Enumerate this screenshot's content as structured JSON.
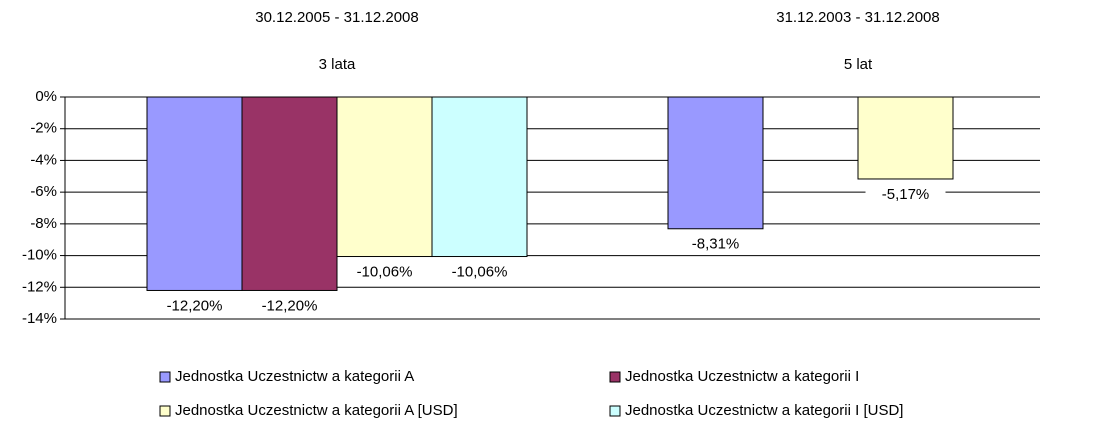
{
  "chart_data": {
    "type": "bar",
    "categories": [
      "30.12.2005 - 31.12.2008",
      "31.12.2003 - 31.12.2008"
    ],
    "category_sublabels": [
      "3 lata",
      "5 lat"
    ],
    "series": [
      {
        "name": "Jednostka Uczestnictw a kategorii A",
        "color": "#9999ff",
        "values": [
          -12.2,
          -8.31
        ],
        "value_labels": [
          "-12,20%",
          "-8,31%"
        ]
      },
      {
        "name": "Jednostka Uczestnictw a kategorii I",
        "color": "#993366",
        "values": [
          -12.2,
          null
        ],
        "value_labels": [
          "-12,20%",
          null
        ]
      },
      {
        "name": "Jednostka Uczestnictw a kategorii A [USD]",
        "color": "#ffffcc",
        "values": [
          -10.06,
          -5.17
        ],
        "value_labels": [
          "-10,06%",
          "-5,17%"
        ]
      },
      {
        "name": "Jednostka Uczestnictw a kategorii I [USD]",
        "color": "#ccffff",
        "values": [
          -10.06,
          null
        ],
        "value_labels": [
          "-10,06%",
          null
        ]
      }
    ],
    "ylim": [
      -14,
      0
    ],
    "yticks": [
      {
        "value": 0,
        "label": "0%"
      },
      {
        "value": -2,
        "label": "-2%"
      },
      {
        "value": -4,
        "label": "-4%"
      },
      {
        "value": -6,
        "label": "-6%"
      },
      {
        "value": -8,
        "label": "-8%"
      },
      {
        "value": -10,
        "label": "-10%"
      },
      {
        "value": -12,
        "label": "-12%"
      },
      {
        "value": -14,
        "label": "-14%"
      }
    ],
    "grid": true
  }
}
